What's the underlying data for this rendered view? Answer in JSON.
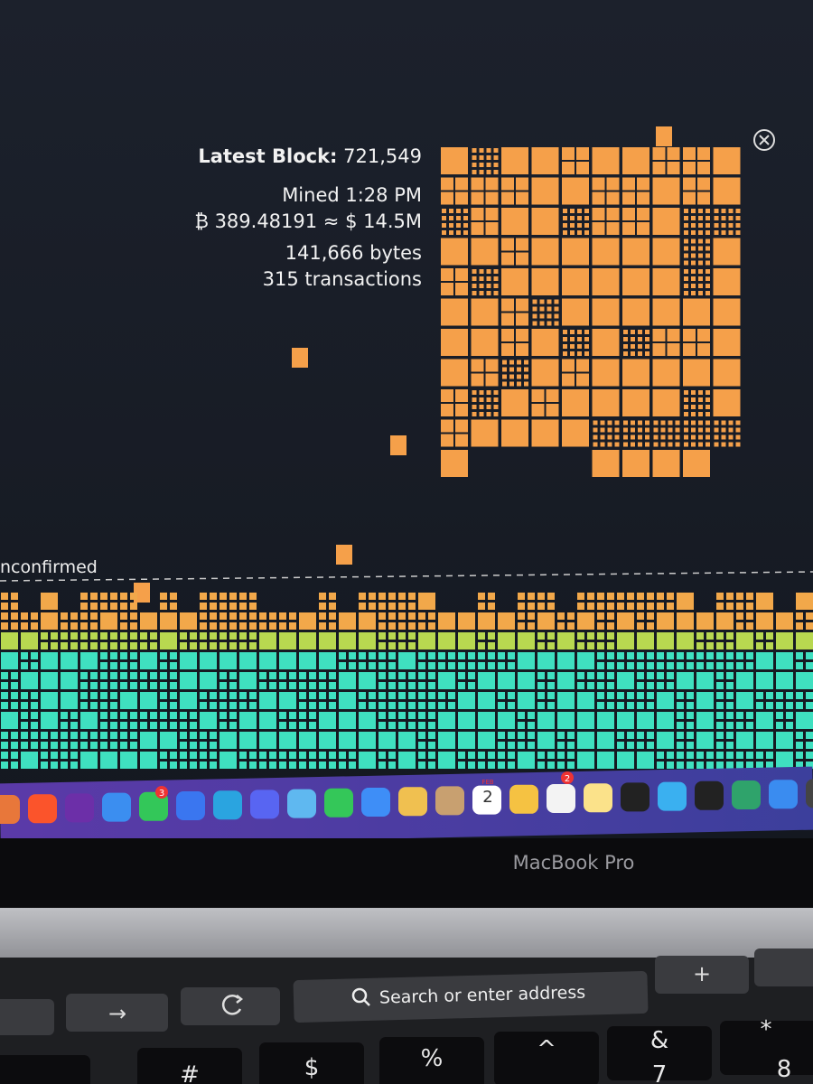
{
  "block_info": {
    "heading": "Latest Block:",
    "height": "721,549",
    "mined": "Mined 1:28 PM",
    "value": "₿ 389.48191 ≈ $ 14.5M",
    "size": "141,666 bytes",
    "tx_count": "315 transactions"
  },
  "mempool": {
    "label": "nconfirmed"
  },
  "dock": {
    "messages_badge": "3",
    "calendar_month": "FEB",
    "calendar_day": "2",
    "reminders_badge": "2"
  },
  "laptop": {
    "brand": "MacBook Pro"
  },
  "touch_bar": {
    "forward": "→",
    "search": "Search or enter address",
    "plus": "+"
  },
  "keyboard": {
    "keys": [
      "#",
      "$",
      "%",
      "^",
      "&",
      "7",
      "*",
      "8"
    ]
  }
}
